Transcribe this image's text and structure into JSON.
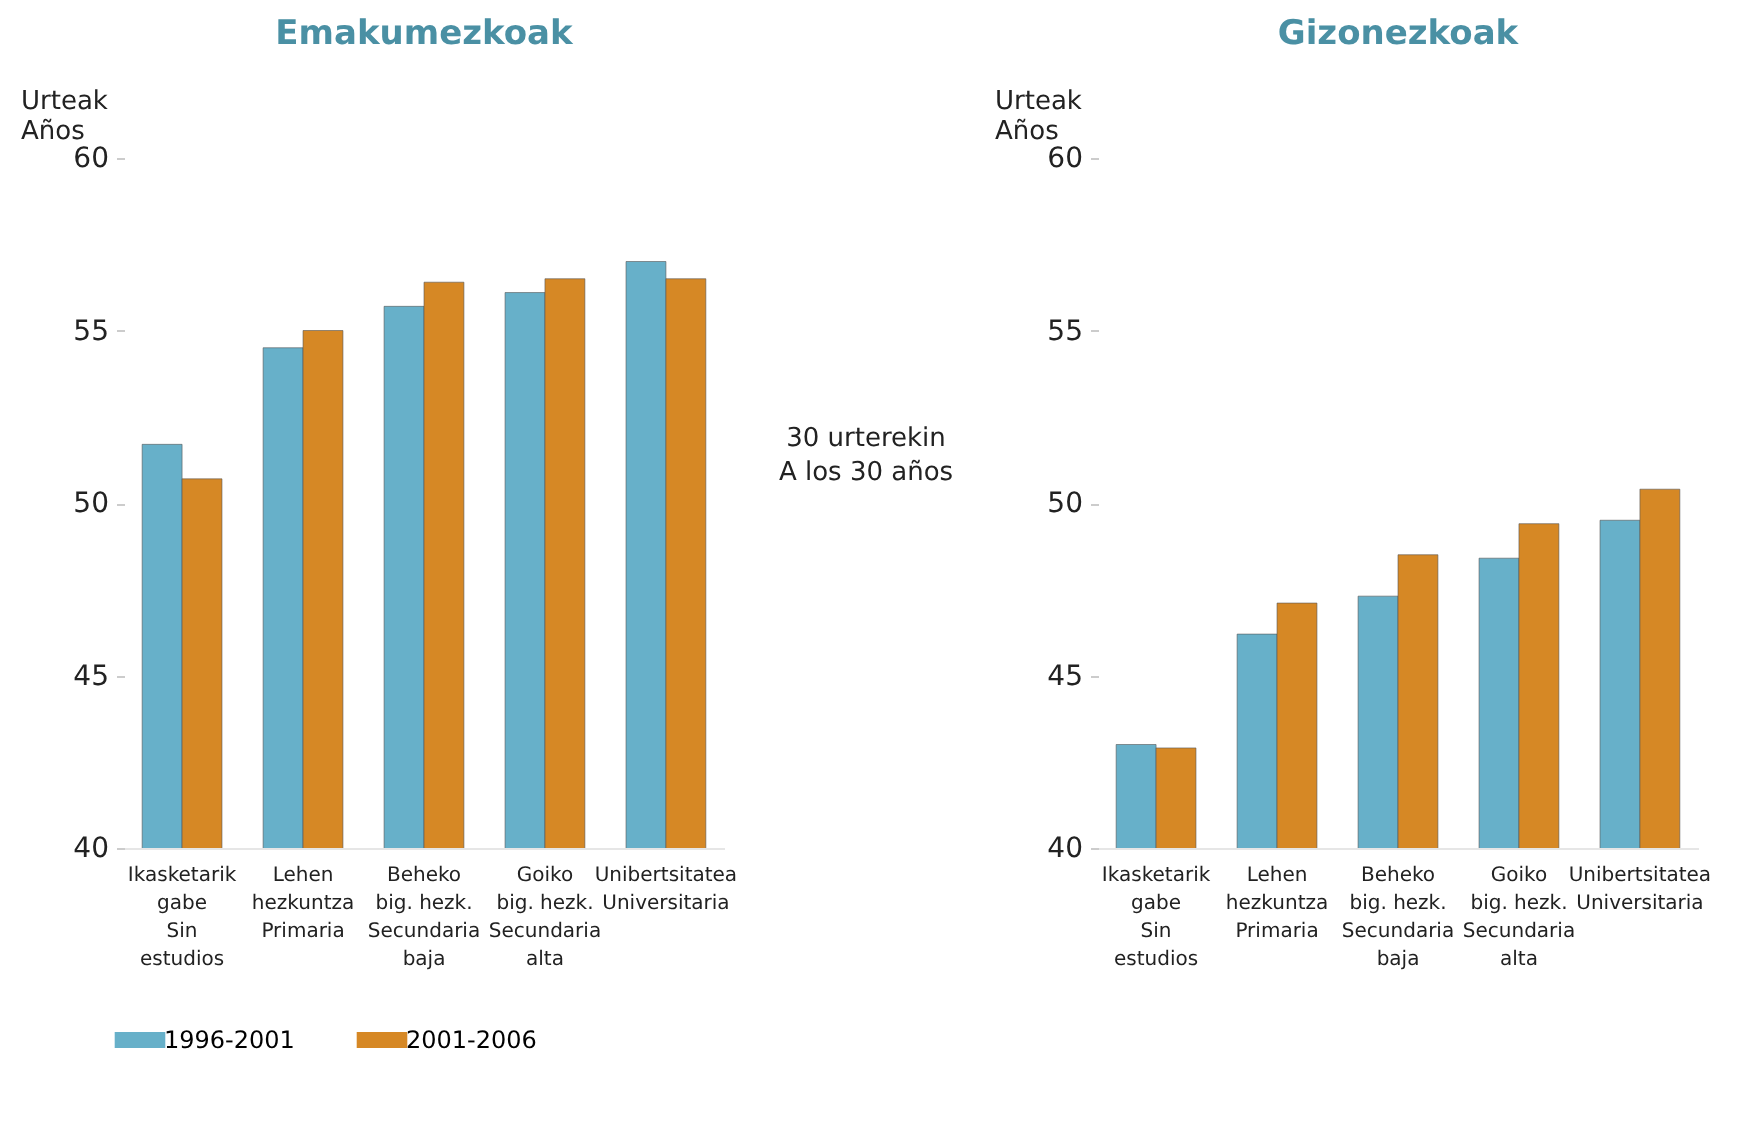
{
  "chart_data": [
    {
      "type": "bar",
      "title": "Emakumezkoak",
      "ylabel": "Urteak\nAños",
      "categories": [
        "Ikasketarik\ngabe\n\nSin\nestudios",
        "Lehen\nhezkuntza\n\nPrimaria",
        "Beheko\nbig. hezk.\n\nSecundaria\nbaja",
        "Goiko\nbig. hezk.\n\nSecundaria\nalta",
        "Unibertsitatea\n\n\nUniversitaria"
      ],
      "series": [
        {
          "name": "1996-2001",
          "color": "#67b0c9",
          "values": [
            51.7,
            54.5,
            55.7,
            56.1,
            57.0
          ]
        },
        {
          "name": "2001-2006",
          "color": "#d68825",
          "values": [
            50.7,
            55.0,
            56.4,
            56.5,
            56.5
          ]
        }
      ],
      "ylim": [
        40,
        60
      ],
      "yticks": [
        40,
        45,
        50,
        55,
        60
      ],
      "grid": false,
      "legend": "bottom",
      "annotations": [
        "30 urterekin\nA los 30 años"
      ]
    },
    {
      "type": "bar",
      "title": "Gizonezkoak",
      "ylabel": "Urteak\nAños",
      "categories": [
        "Ikasketarik\ngabe\n\nSin\nestudios",
        "Lehen\nhezkuntza\n\nPrimaria",
        "Beheko\nbig. hezk.\n\nSecundaria\nbaja",
        "Goiko\nbig. hezk.\n\nSecundaria\nalta",
        "Unibertsitatea\n\n\nUniversitaria"
      ],
      "series": [
        {
          "name": "1996-2001",
          "color": "#67b0c9",
          "values": [
            43.0,
            46.2,
            47.3,
            48.4,
            49.5
          ]
        },
        {
          "name": "2001-2006",
          "color": "#d68825",
          "values": [
            42.9,
            47.1,
            48.5,
            49.4,
            50.4
          ]
        }
      ],
      "ylim": [
        40,
        60
      ],
      "yticks": [
        40,
        45,
        50,
        55,
        60
      ],
      "grid": false,
      "legend": "bottom"
    }
  ]
}
